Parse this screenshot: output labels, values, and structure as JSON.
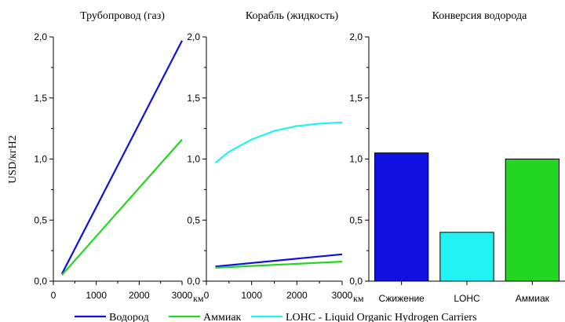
{
  "ylabel": "USD/кгH2",
  "colors": {
    "hydrogen": "#1010e0",
    "ammonia": "#22d622",
    "lohc": "#22f2f2",
    "axis": "#000000"
  },
  "legend": {
    "placement": "bottom",
    "items": [
      {
        "label": "Водород",
        "color_key": "hydrogen"
      },
      {
        "label": "Аммиак",
        "color_key": "ammonia"
      },
      {
        "label": "LOHC - Liquid Organic Hydrogen Carriers",
        "color_key": "lohc"
      }
    ]
  },
  "chart_data": [
    {
      "type": "line",
      "title": "Трубопровод (газ)",
      "xlabel": "",
      "x_unit": "км",
      "ylabel": "USD/кгH2",
      "xlim": [
        0,
        3000
      ],
      "ylim": [
        0,
        2.0
      ],
      "x_ticks": [
        "0",
        "1000",
        "2000",
        "3000"
      ],
      "y_ticks": [
        "0,0",
        "0,5",
        "1,0",
        "1,5",
        "2,0"
      ],
      "grid": false,
      "series": [
        {
          "name": "Водород",
          "color_key": "hydrogen",
          "x": [
            200,
            3000
          ],
          "y": [
            0.06,
            1.97
          ]
        },
        {
          "name": "Аммиак",
          "color_key": "ammonia",
          "x": [
            200,
            3000
          ],
          "y": [
            0.05,
            1.16
          ]
        }
      ]
    },
    {
      "type": "line",
      "title": "Корабль (жидкость)",
      "xlabel": "",
      "x_unit": "км",
      "xlim": [
        0,
        3000
      ],
      "ylim": [
        0,
        2.0
      ],
      "x_ticks": [
        "0",
        "1000",
        "2000",
        "3000"
      ],
      "y_ticks": [
        "0,0",
        "0,5",
        "1,0",
        "1,5",
        "2,0"
      ],
      "grid": false,
      "series": [
        {
          "name": "LOHC - Liquid Organic Hydrogen Carriers",
          "color_key": "lohc",
          "x": [
            200,
            500,
            1000,
            1500,
            2000,
            2500,
            3000
          ],
          "y": [
            0.97,
            1.06,
            1.16,
            1.23,
            1.27,
            1.29,
            1.3
          ]
        },
        {
          "name": "Водород",
          "color_key": "hydrogen",
          "x": [
            200,
            3000
          ],
          "y": [
            0.12,
            0.22
          ]
        },
        {
          "name": "Аммиак",
          "color_key": "ammonia",
          "x": [
            200,
            3000
          ],
          "y": [
            0.11,
            0.16
          ]
        }
      ]
    },
    {
      "type": "bar",
      "title": "Конверсия водорода",
      "xlabel": "",
      "ylim": [
        0,
        2.0
      ],
      "y_ticks": [
        "0,0",
        "0,5",
        "1,0",
        "1,5",
        "2,0"
      ],
      "grid": false,
      "categories": [
        "Сжижение",
        "LOHC",
        "Аммиак"
      ],
      "values": [
        1.05,
        0.4,
        1.0
      ],
      "bar_color_keys": [
        "hydrogen",
        "lohc",
        "ammonia"
      ]
    }
  ]
}
